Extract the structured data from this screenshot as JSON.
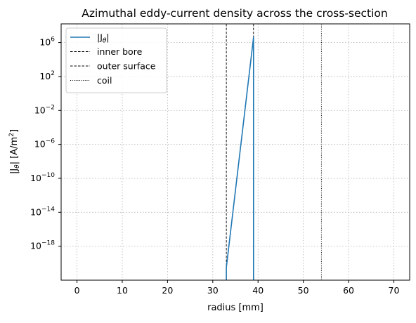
{
  "chart_data": {
    "type": "line",
    "title": "Azimuthal eddy-current density across the cross-section",
    "xlabel": "radius  [mm]",
    "ylabel": {
      "base": "|J",
      "sub": "θ",
      "mid": "| [A/m",
      "sup": "2",
      "end": "]"
    },
    "xlim": [
      -3.5,
      73.5
    ],
    "ylim_log10": [
      -22,
      8.2
    ],
    "x_ticks": [
      0,
      10,
      20,
      30,
      40,
      50,
      60,
      70
    ],
    "y_tick_exponents": [
      6,
      2,
      -2,
      -6,
      -10,
      -14,
      -18
    ],
    "y_tick_base": "10",
    "grid": true,
    "legend_position": "top-left",
    "series": [
      {
        "name": "|J_θ|",
        "legend_label": {
          "base": "|J",
          "sub": "θ",
          "end": "|"
        },
        "color": "#1f77b4",
        "x": [
          33.0,
          33.0,
          39.0,
          39.0
        ],
        "y_log10": [
          -22,
          -20.5,
          6.6,
          -22
        ]
      }
    ],
    "reference_lines": [
      {
        "name": "inner bore",
        "x": 33.0,
        "style": "dashed",
        "color": "#000000"
      },
      {
        "name": "outer surface",
        "x": 39.0,
        "style": "dashed",
        "color": "#000000"
      },
      {
        "name": "coil",
        "x": 54.0,
        "style": "dotted",
        "color": "#000000"
      }
    ]
  }
}
